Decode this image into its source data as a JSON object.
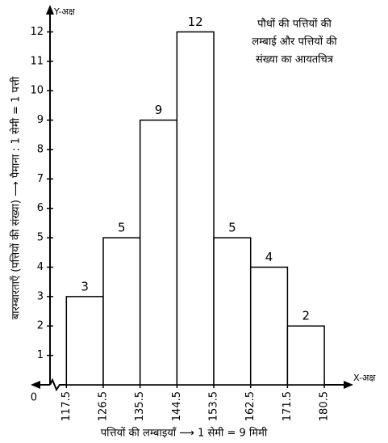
{
  "chart_data": {
    "type": "histogram",
    "title": [
      "पौधों की पत्तियों की",
      "लम्बाई और पत्तियों की",
      "संख्या का आयतचित्र"
    ],
    "x_label": "पत्तियों की लम्बाइयाँ ⟶ 1 सेमी = 9 मिमी",
    "y_label": "बारम्बारताएँ (पत्तियों की संख्या) ⟶ पैमाना : 1 सेमी = 1 पत्ती",
    "x_axis_name": "X-अक्ष",
    "y_axis_name": "Y-अक्ष",
    "bins": [
      117.5,
      126.5,
      135.5,
      144.5,
      153.5,
      162.5,
      171.5,
      180.5
    ],
    "values": [
      3,
      5,
      9,
      12,
      5,
      4,
      2
    ],
    "color": "#ffffff",
    "edge_color": "#000000",
    "xlim": [
      113.5,
      186
    ],
    "ylim": [
      0,
      12.7
    ],
    "xticks": [
      117.5,
      126.5,
      135.5,
      144.5,
      153.5,
      162.5,
      171.5,
      180.5
    ],
    "yticks": [
      0,
      1,
      2,
      3,
      4,
      5,
      6,
      7,
      8,
      9,
      10,
      11,
      12
    ]
  }
}
